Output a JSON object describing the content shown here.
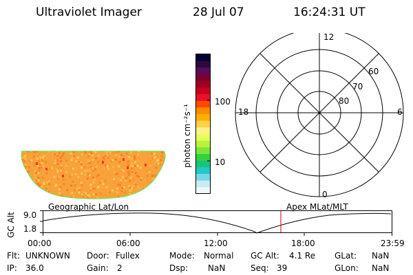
{
  "header": {
    "instrument": "Ultraviolet Imager",
    "date": "28 Jul 07",
    "time": "16:24:31 UT"
  },
  "colorbar": {
    "unit_label": "photon cm⁻²s⁻¹",
    "ticks": [
      "100",
      "10"
    ],
    "colors": [
      "#000033",
      "#2b0a3d",
      "#5a0b5a",
      "#7a0030",
      "#a00020",
      "#c8001c",
      "#e8102a",
      "#ff4a00",
      "#ff8c00",
      "#ffb000",
      "#ffd24a",
      "#fff18a",
      "#e8ff5a",
      "#b6f53a",
      "#7ae63a",
      "#34d23a",
      "#17c47a",
      "#22c9c9",
      "#7ad6e6",
      "#c8ecf4",
      "#eef8fb"
    ]
  },
  "polar_plot": {
    "mlt_labels": {
      "top": "12",
      "left": "18",
      "right": "6",
      "bottom": "0"
    },
    "lat_labels": [
      "60",
      "70",
      "80"
    ]
  },
  "map": {
    "fill_color": "#f7a23a",
    "edge_color": "#7ae05a",
    "spot_color": "#ff3030"
  },
  "altitude_plot": {
    "left_label": "Geographic Lat/Lon",
    "right_label": "Apex MLat/MLT",
    "ylabel": "GC Alt",
    "yticks": [
      "9.0",
      "1.8"
    ],
    "xticks": [
      "00:00",
      "06:00",
      "12:00",
      "18:00",
      "23:59"
    ],
    "marker_color": "#e02020"
  },
  "status": {
    "flt_label": "Flt:",
    "flt_value": "UNKNOWN",
    "door_label": "Door:",
    "door_value": "Fullex",
    "mode_label": "Mode:",
    "mode_value": "Normal",
    "gcalt_label": "GC Alt:",
    "gcalt_value": "4.1 Re",
    "glat_label": "GLat:",
    "glat_value": "NaN",
    "ip_label": "IP:",
    "ip_value": "36.0",
    "gain_label": "Gain:",
    "gain_value": "2",
    "dsp_label": "Dsp:",
    "dsp_value": "NaN",
    "seq_label": "Seq:",
    "seq_value": "39",
    "glon_label": "GLon:",
    "glon_value": "NaN"
  }
}
